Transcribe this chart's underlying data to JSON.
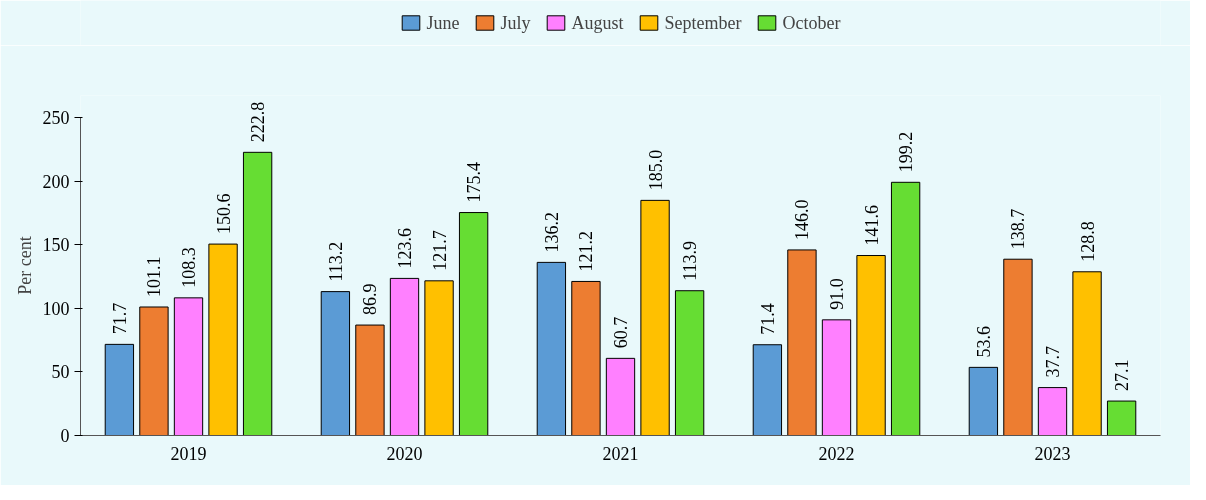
{
  "chart_data": {
    "type": "bar",
    "ylabel": "Per cent",
    "categories": [
      "2019",
      "2020",
      "2021",
      "2022",
      "2023"
    ],
    "series": [
      {
        "name": "June",
        "color": "#5b9bd5",
        "values": [
          71.7,
          113.2,
          136.2,
          71.4,
          53.6
        ],
        "value_labels": [
          "71.7",
          "113.2",
          "136.2",
          "71.4",
          "53.6"
        ]
      },
      {
        "name": "July",
        "color": "#ed7d31",
        "values": [
          101.1,
          86.9,
          121.2,
          146.0,
          138.7
        ],
        "value_labels": [
          "101.1",
          "86.9",
          "121.2",
          "146.0",
          "138.7"
        ]
      },
      {
        "name": "August",
        "color": "#ff80ff",
        "values": [
          108.3,
          123.6,
          60.7,
          91.0,
          37.7
        ],
        "value_labels": [
          "108.3",
          "123.6",
          "60.7",
          "91.0",
          "37.7"
        ]
      },
      {
        "name": "September",
        "color": "#ffc000",
        "values": [
          150.6,
          121.7,
          185.0,
          141.6,
          128.8
        ],
        "value_labels": [
          "150.6",
          "121.7",
          "185.0",
          "141.6",
          "128.8"
        ]
      },
      {
        "name": "October",
        "color": "#66dd33",
        "values": [
          222.8,
          175.4,
          113.9,
          199.2,
          27.1
        ],
        "value_labels": [
          "222.8",
          "175.4",
          "113.9",
          "199.2",
          "27.1"
        ]
      }
    ],
    "ylim": [
      0,
      250
    ],
    "yticks": [
      0,
      50,
      100,
      150,
      200,
      250
    ],
    "grid": false,
    "legend": "top"
  }
}
